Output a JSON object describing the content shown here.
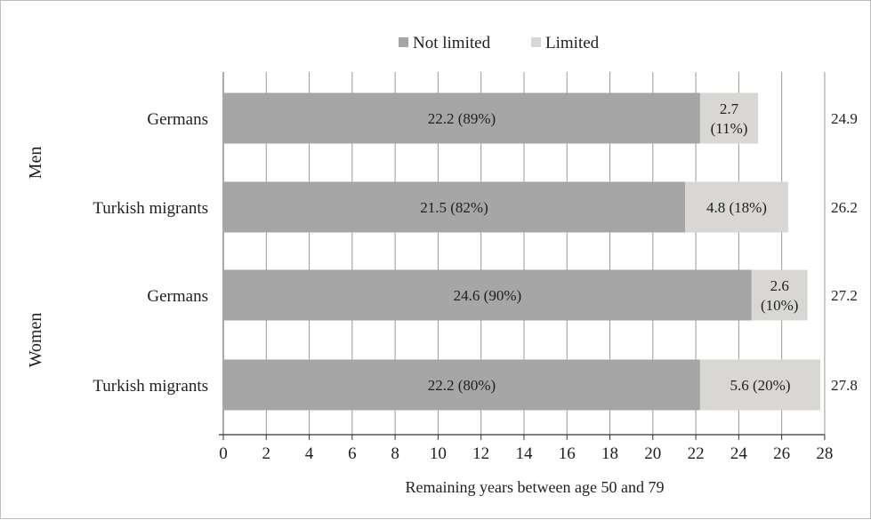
{
  "chart_data": {
    "type": "bar",
    "orientation": "horizontal",
    "stacked": true,
    "xlabel": "Remaining  years between age 50 and 79",
    "xlim": [
      0,
      28
    ],
    "xticks": [
      "0",
      "2",
      "4",
      "6",
      "8",
      "10",
      "12",
      "14",
      "16",
      "18",
      "20",
      "22",
      "24",
      "26",
      "28"
    ],
    "grid": "vertical",
    "legend": "top-center",
    "groups": [
      {
        "label": "Men",
        "categories": [
          "Germans",
          "Turkish migrants"
        ]
      },
      {
        "label": "Women",
        "categories": [
          "Germans",
          "Turkish migrants"
        ]
      }
    ],
    "categories": [
      "Germans",
      "Turkish migrants",
      "Germans",
      "Turkish migrants"
    ],
    "series": [
      {
        "name": "Not limited",
        "color": "#a6a6a6",
        "values": [
          22.2,
          21.5,
          24.6,
          22.2
        ],
        "labels": [
          [
            "22.2 (89%)"
          ],
          [
            "21.5 (82%)"
          ],
          [
            "24.6 (90%)"
          ],
          [
            "22.2 (80%)"
          ]
        ]
      },
      {
        "name": "Limited",
        "color": "#d9d7d4",
        "values": [
          2.7,
          4.8,
          2.6,
          5.6
        ],
        "labels": [
          [
            "2.7",
            "(11%)"
          ],
          [
            "4.8 (18%)"
          ],
          [
            "2.6",
            "(10%)"
          ],
          [
            "5.6 (20%)"
          ]
        ]
      }
    ],
    "totals": [
      "24.9",
      "26.2",
      "27.2",
      "27.8"
    ]
  }
}
